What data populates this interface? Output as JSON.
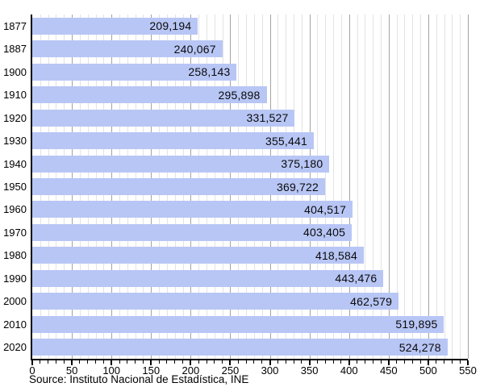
{
  "chart_data": {
    "type": "bar",
    "orientation": "horizontal",
    "title": "",
    "xlabel": "",
    "ylabel": "",
    "categories": [
      "1877",
      "1887",
      "1900",
      "1910",
      "1920",
      "1930",
      "1940",
      "1950",
      "1960",
      "1970",
      "1980",
      "1990",
      "2000",
      "2010",
      "2020"
    ],
    "values": [
      209194,
      240067,
      258143,
      295898,
      331527,
      355441,
      375180,
      369722,
      404517,
      403405,
      418584,
      443476,
      462579,
      519895,
      524278
    ],
    "value_labels": [
      "209,194",
      "240,067",
      "258,143",
      "295,898",
      "331,527",
      "355,441",
      "375,180",
      "369,722",
      "404,517",
      "403,405",
      "418,584",
      "443,476",
      "462,579",
      "519,895",
      "524,278"
    ],
    "xlim": [
      0,
      550
    ],
    "value_divisor": 1000,
    "x_major_step": 50,
    "x_minor_step": 10,
    "x_tick_labels": [
      "0",
      "50",
      "100",
      "150",
      "200",
      "250",
      "300",
      "350",
      "400",
      "450",
      "500",
      "550"
    ],
    "grid": "vertical, minor every 10, major every 50",
    "legend": "none",
    "source": "Source: Instituto Nacional de Estadística, INE",
    "colors": {
      "bar_fill": "#b8c6f5",
      "grid_minor": "#e3e3e3",
      "grid_major": "#a3a3a3",
      "axis": "#000000",
      "text": "#000000"
    }
  }
}
